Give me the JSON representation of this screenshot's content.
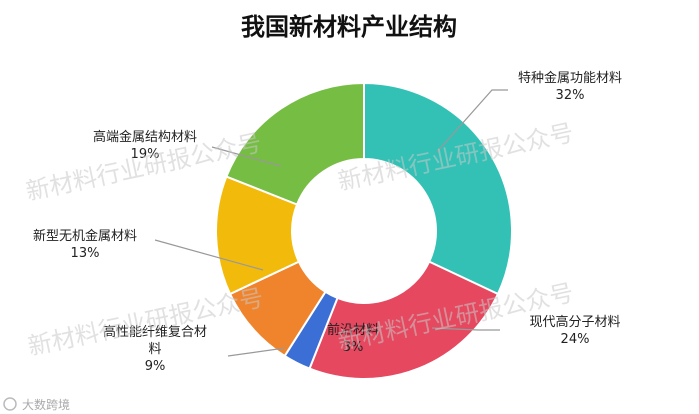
{
  "chart_data": {
    "type": "donut",
    "title": "我国新材料产业结构",
    "slices": [
      {
        "name": "特种金属功能材料",
        "percent_label": "32%",
        "value": 32,
        "color": "#33c1b6"
      },
      {
        "name": "现代高分子材料",
        "percent_label": "24%",
        "value": 24,
        "color": "#e5485f"
      },
      {
        "name": "前沿材料",
        "percent_label": "3%",
        "value": 3,
        "color": "#3b6fd6"
      },
      {
        "name": "高性能纤维复合材料",
        "name_lines": [
          "高性能纤维复合材",
          "料"
        ],
        "percent_label": "9%",
        "value": 9,
        "color": "#f0842c"
      },
      {
        "name": "新型无机金属材料",
        "percent_label": "13%",
        "value": 13,
        "color": "#f2bb0c"
      },
      {
        "name": "高端金属结构材料",
        "percent_label": "19%",
        "value": 19,
        "color": "#76bd43"
      }
    ]
  },
  "watermark": "新材料行业研报公众号",
  "logo_text": "大数跨境"
}
